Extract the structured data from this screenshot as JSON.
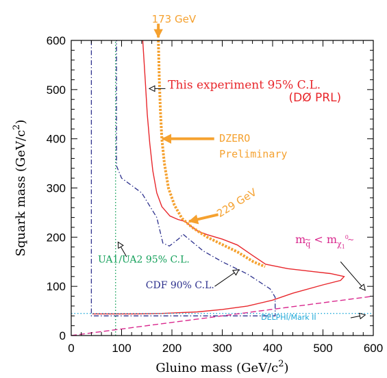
{
  "chart_data": {
    "type": "line",
    "xlabel": "Gluino mass (GeV/c",
    "xlabel_sup": "2",
    "xlabel_end": ")",
    "ylabel": "Squark mass (GeV/c",
    "ylabel_sup": "2",
    "ylabel_end": ")",
    "xlim": [
      0,
      600
    ],
    "ylim": [
      0,
      600
    ],
    "x_ticks": [
      0,
      100,
      200,
      300,
      400,
      500,
      600
    ],
    "y_ticks": [
      0,
      100,
      200,
      300,
      400,
      500,
      600
    ],
    "grid": false,
    "colors": {
      "this_experiment": "#e8262b",
      "dzero_preliminary": "#f5a12f",
      "cdf": "#2b2f8c",
      "ua": "#14a05a",
      "delphi": "#1aa7d8",
      "mq_less": "#d9278d",
      "axis": "#000000"
    },
    "series": [
      {
        "key": "this_experiment",
        "style": "solid",
        "points": [
          [
            142,
            600
          ],
          [
            147,
            520
          ],
          [
            151,
            450
          ],
          [
            156,
            390
          ],
          [
            162,
            335
          ],
          [
            170,
            290
          ],
          [
            180,
            262
          ],
          [
            196,
            243
          ],
          [
            212,
            236
          ],
          [
            226,
            232
          ],
          [
            238,
            222
          ],
          [
            252,
            212
          ],
          [
            270,
            205
          ],
          [
            300,
            196
          ],
          [
            330,
            184
          ],
          [
            360,
            163
          ],
          [
            386,
            145
          ],
          [
            430,
            136
          ],
          [
            480,
            130
          ],
          [
            515,
            126
          ],
          [
            542,
            120
          ],
          [
            535,
            112
          ],
          [
            500,
            103
          ],
          [
            440,
            86
          ],
          [
            400,
            72
          ],
          [
            350,
            60
          ],
          [
            300,
            53
          ],
          [
            250,
            48
          ],
          [
            180,
            45
          ],
          [
            130,
            44
          ],
          [
            42,
            44
          ]
        ]
      },
      {
        "key": "dzero_preliminary",
        "style": "dotted",
        "points": [
          [
            173,
            600
          ],
          [
            175,
            520
          ],
          [
            177,
            460
          ],
          [
            180,
            400
          ],
          [
            185,
            350
          ],
          [
            193,
            300
          ],
          [
            205,
            265
          ],
          [
            220,
            238
          ],
          [
            240,
            220
          ],
          [
            270,
            200
          ],
          [
            300,
            185
          ],
          [
            330,
            170
          ],
          [
            362,
            150
          ],
          [
            385,
            140
          ]
        ]
      },
      {
        "key": "cdf",
        "style": "dashdot",
        "points": [
          [
            40,
            600
          ],
          [
            40,
            40
          ],
          [
            405,
            40
          ],
          [
            405,
            78
          ],
          [
            395,
            95
          ],
          [
            350,
            125
          ],
          [
            300,
            150
          ],
          [
            262,
            172
          ],
          [
            222,
            206
          ],
          [
            215,
            198
          ],
          [
            195,
            182
          ],
          [
            182,
            188
          ],
          [
            170,
            240
          ],
          [
            140,
            290
          ],
          [
            100,
            320
          ],
          [
            90,
            345
          ],
          [
            90,
            600
          ]
        ]
      },
      {
        "key": "ua",
        "style": "dotted",
        "points": [
          [
            88,
            0
          ],
          [
            88,
            600
          ]
        ]
      },
      {
        "key": "delphi",
        "style": "dotted",
        "points": [
          [
            0,
            45
          ],
          [
            600,
            45
          ]
        ]
      },
      {
        "key": "mq_less",
        "style": "dashed",
        "points": [
          [
            0,
            0
          ],
          [
            600,
            80
          ]
        ]
      }
    ],
    "annotations": [
      {
        "key": "gev173",
        "text": "173 GeV",
        "x": 160,
        "y": 636
      },
      {
        "key": "this_exp",
        "text": "This experiment 95% C.L.",
        "x": 192,
        "y": 502
      },
      {
        "key": "prl",
        "text": "(DØ PRL)",
        "x": 432,
        "y": 476
      },
      {
        "key": "dzero",
        "text": "DZERO",
        "x": 294,
        "y": 394
      },
      {
        "key": "prelim",
        "text": "Preliminary",
        "x": 294,
        "y": 362
      },
      {
        "key": "gev229",
        "text": "229 GeV",
        "x": 295,
        "y": 240
      },
      {
        "key": "mq",
        "text": "m",
        "x": 445,
        "y": 188
      },
      {
        "key": "ua_label",
        "text": "UA1/UA2 95% C.L.",
        "x": 53,
        "y": 148
      },
      {
        "key": "cdf_label",
        "text": "CDF 90% C.L.",
        "x": 148,
        "y": 96
      },
      {
        "key": "delphi_label",
        "text": "DELPHI/Mark II",
        "x": 377,
        "y": 32
      }
    ],
    "mq_sub_q": "q",
    "mq_sub_chi": "χ",
    "mq_less_sign": "<",
    "mq_m2": "m",
    "mq_sub_1": "1",
    "mq_sup_0": "0",
    "tilde": "~"
  }
}
